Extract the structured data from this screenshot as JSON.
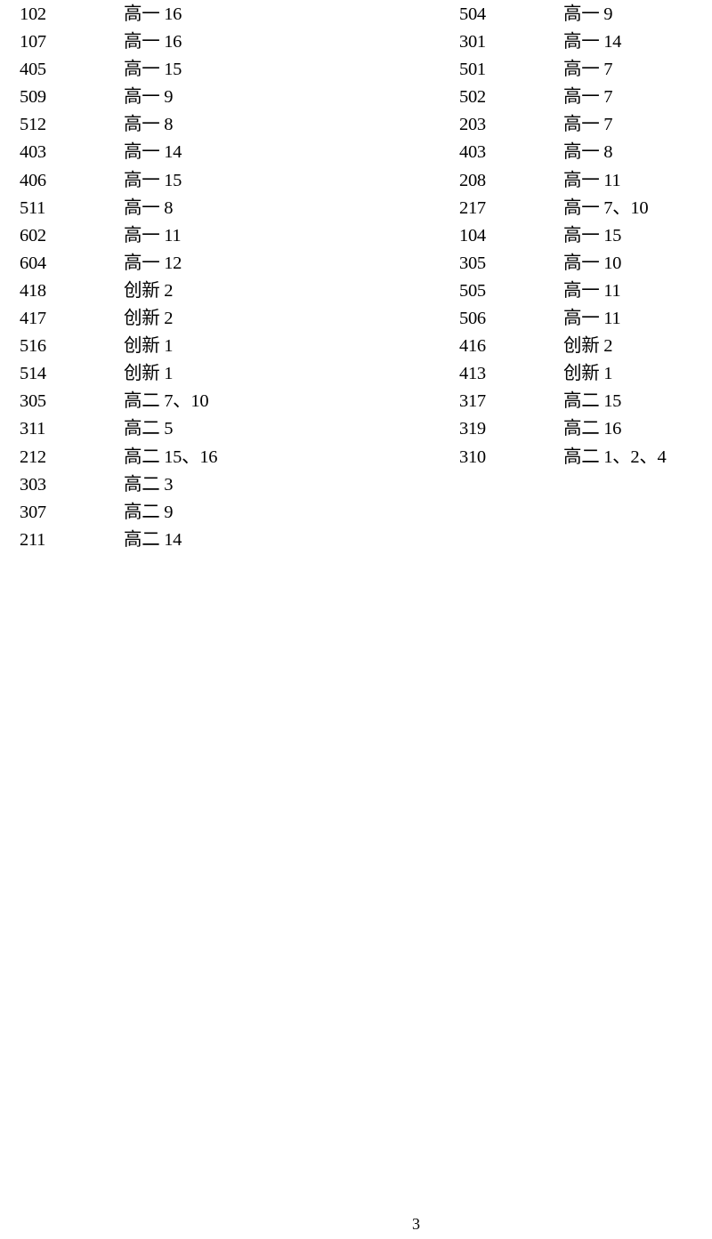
{
  "left_column": [
    {
      "room": "102",
      "class": "高一 16"
    },
    {
      "room": "107",
      "class": "高一 16"
    },
    {
      "room": "405",
      "class": "高一 15"
    },
    {
      "room": "509",
      "class": "高一 9"
    },
    {
      "room": "512",
      "class": "高一 8"
    },
    {
      "room": "403",
      "class": "高一 14"
    },
    {
      "room": "406",
      "class": "高一 15"
    },
    {
      "room": "511",
      "class": "高一 8"
    },
    {
      "room": "602",
      "class": "高一 11"
    },
    {
      "room": "604",
      "class": "高一 12"
    },
    {
      "room": "418",
      "class": "创新 2"
    },
    {
      "room": "417",
      "class": "创新 2"
    },
    {
      "room": "516",
      "class": "创新 1"
    },
    {
      "room": "514",
      "class": "创新 1"
    },
    {
      "room": "305",
      "class": "高二 7、10"
    },
    {
      "room": "311",
      "class": "高二 5"
    },
    {
      "room": "212",
      "class": "高二 15、16"
    },
    {
      "room": "303",
      "class": "高二 3"
    },
    {
      "room": "307",
      "class": "高二 9"
    },
    {
      "room": "211",
      "class": "高二 14"
    }
  ],
  "right_column": [
    {
      "room": "504",
      "class": "高一 9"
    },
    {
      "room": "301",
      "class": "高一 14"
    },
    {
      "room": "501",
      "class": "高一 7"
    },
    {
      "room": "502",
      "class": "高一 7"
    },
    {
      "room": "203",
      "class": "高一 7"
    },
    {
      "room": "403",
      "class": "高一 8"
    },
    {
      "room": "208",
      "class": "高一 11"
    },
    {
      "room": "217",
      "class": "高一 7、10"
    },
    {
      "room": "104",
      "class": "高一 15"
    },
    {
      "room": "305",
      "class": "高一 10"
    },
    {
      "room": "505",
      "class": "高一 11"
    },
    {
      "room": "506",
      "class": "高一 11"
    },
    {
      "room": "416",
      "class": "创新 2"
    },
    {
      "room": "413",
      "class": "创新 1"
    },
    {
      "room": "317",
      "class": "高二 15"
    },
    {
      "room": "319",
      "class": "高二 16"
    },
    {
      "room": "310",
      "class": "高二 1、2、4"
    }
  ],
  "page_number": "3"
}
